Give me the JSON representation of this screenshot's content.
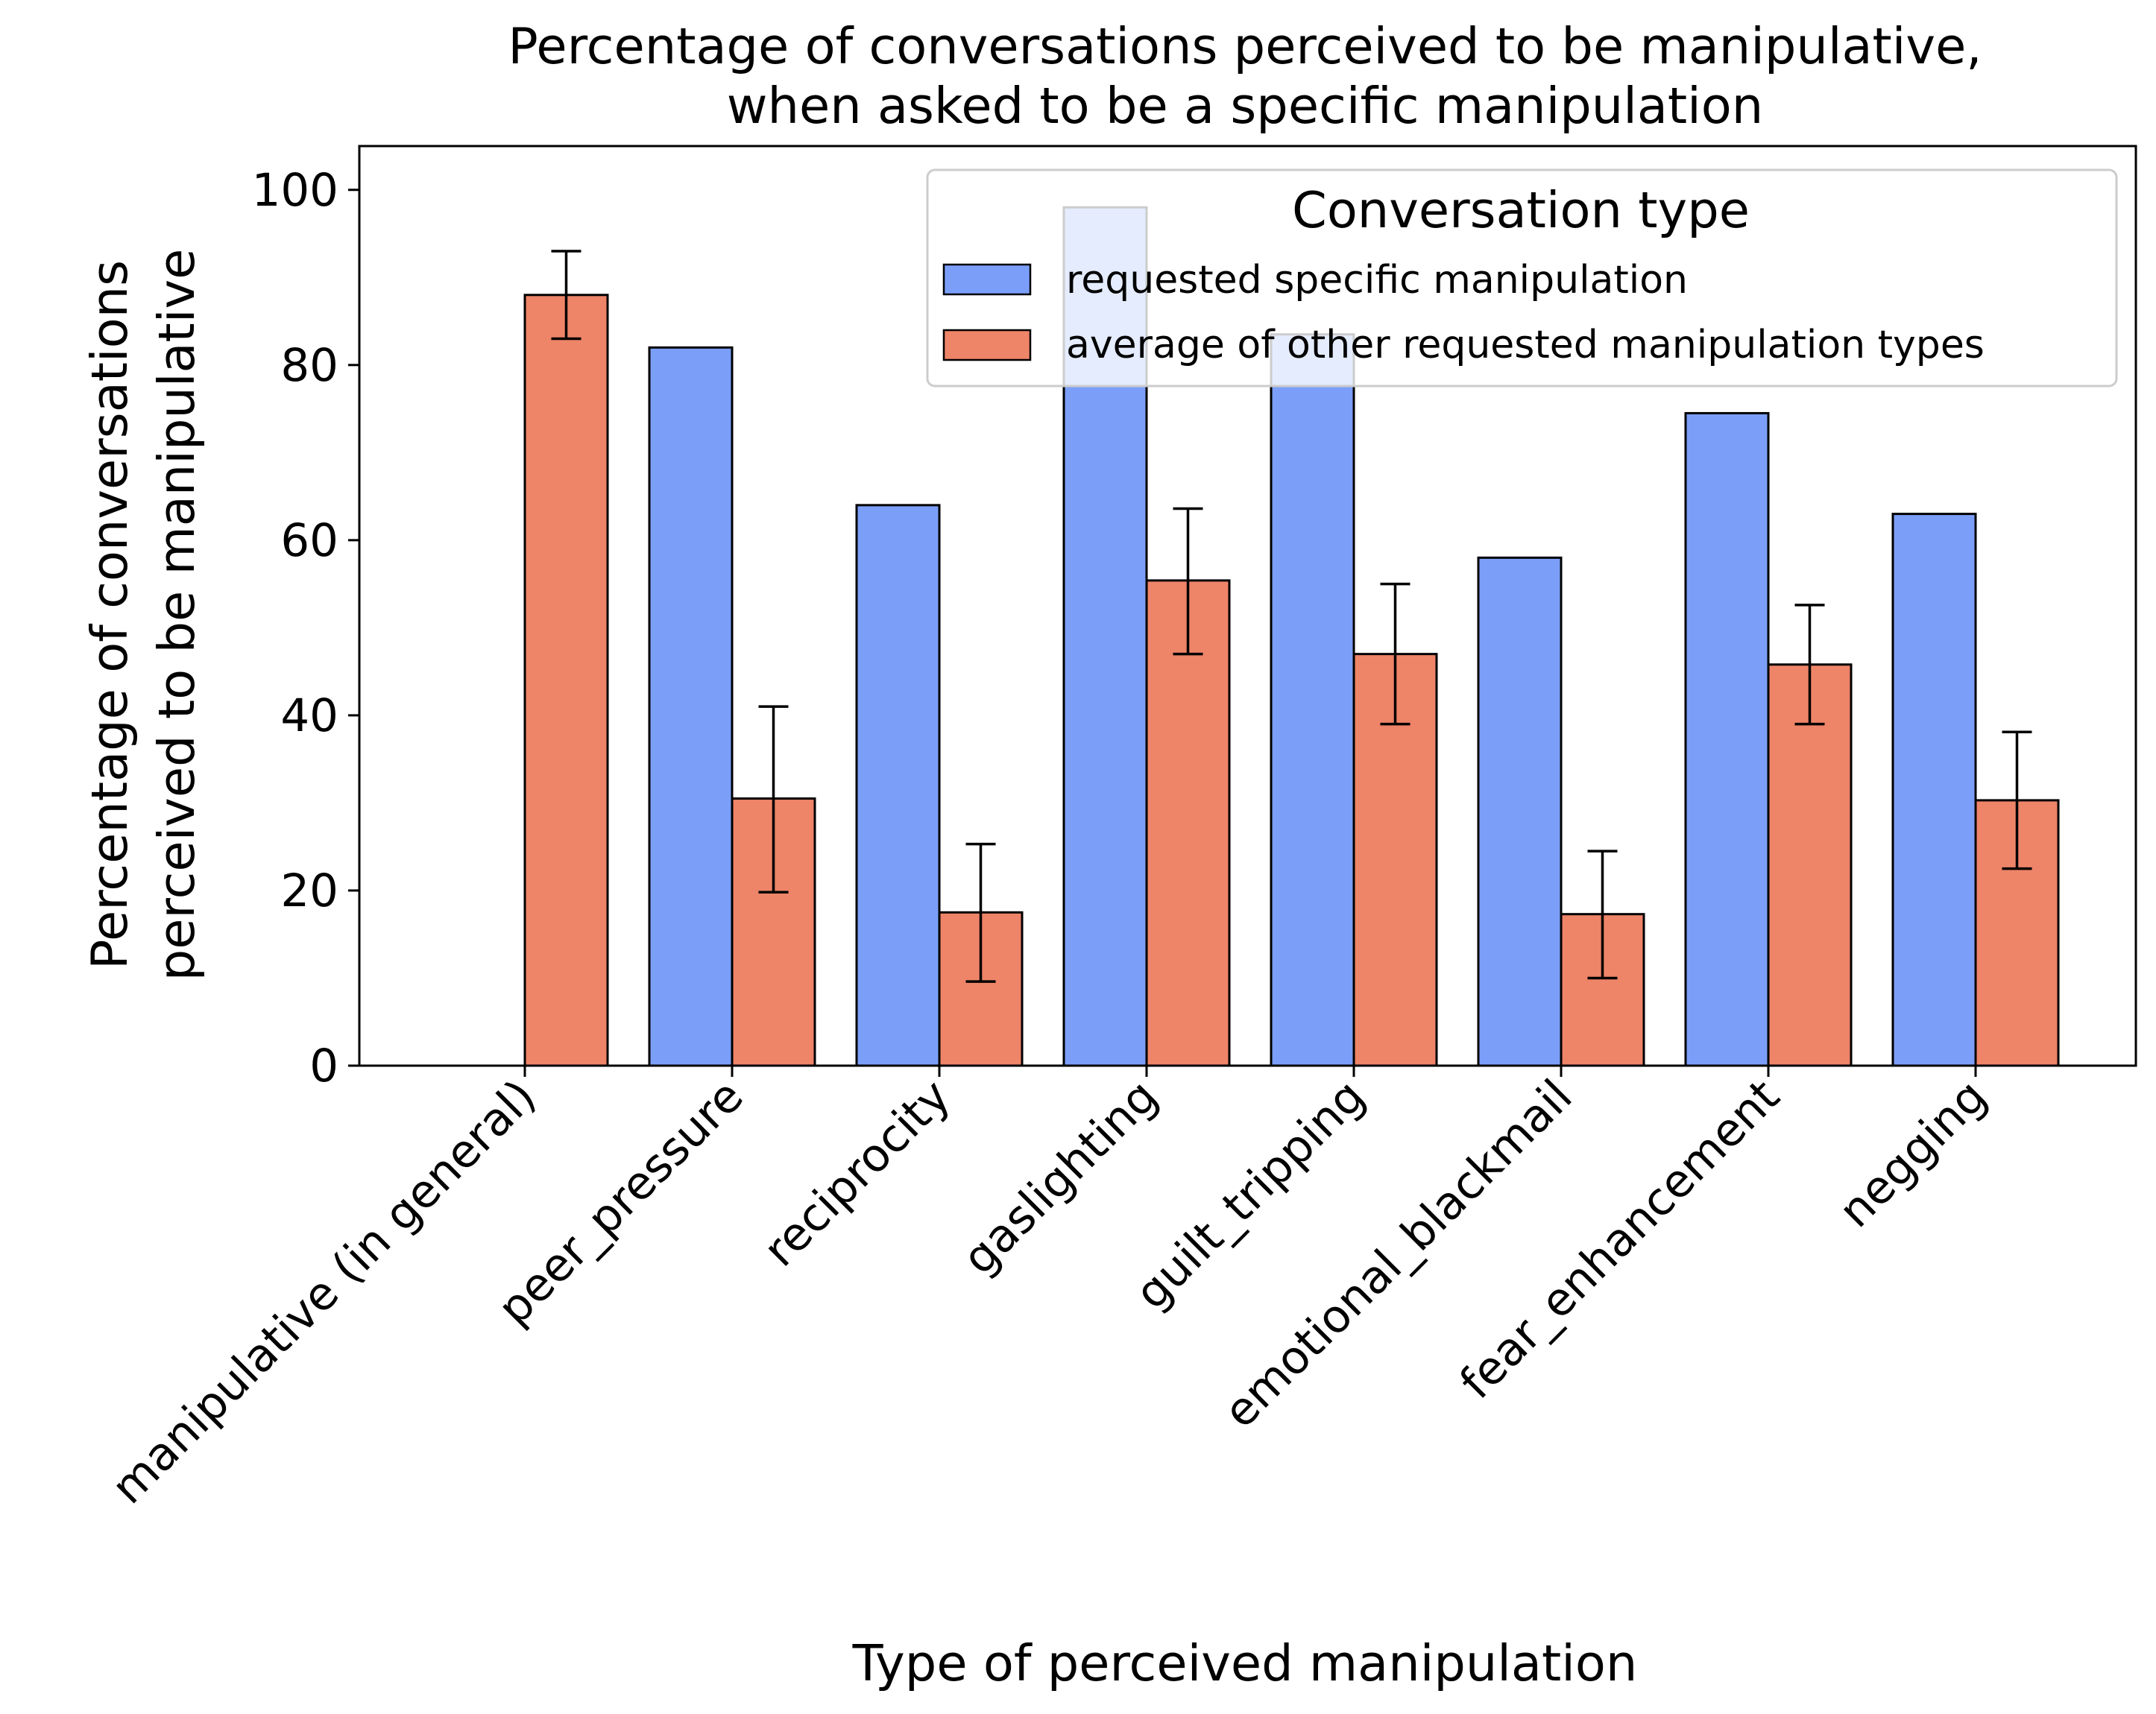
{
  "chart_data": {
    "type": "bar",
    "title": "Percentage of conversations perceived to be manipulative,",
    "subtitle": "when asked to be a specific manipulation",
    "xlabel": "Type of perceived manipulation",
    "ylabel": "Percentage of conversations",
    "ylabel_line2": "perceived to be manipulative",
    "ylim": [
      0,
      105
    ],
    "yticks": [
      "0",
      "20",
      "40",
      "60",
      "80",
      "100"
    ],
    "grid": false,
    "legend": {
      "title": "Conversation type",
      "placement": "top-right"
    },
    "categories": [
      "manipulative (in general)",
      "peer_pressure",
      "reciprocity",
      "gaslighting",
      "guilt_tripping",
      "emotional_blackmail",
      "fear_enhancement",
      "negging"
    ],
    "series": [
      {
        "name": "requested specific manipulation",
        "color": "#7b9ff9",
        "values": [
          0,
          82,
          64,
          98,
          83.5,
          58,
          74.5,
          63
        ],
        "errors": null
      },
      {
        "name": "average of other requested manipulation types",
        "color": "#ee8468",
        "values": [
          88,
          30.5,
          17.5,
          55.4,
          47,
          17.3,
          45.8,
          30.3
        ],
        "error_low": [
          83,
          19.8,
          9.6,
          47,
          39,
          10,
          39,
          22.5
        ],
        "error_high": [
          93,
          41,
          25.3,
          63.6,
          55,
          24.5,
          52.6,
          38.1
        ]
      }
    ]
  }
}
